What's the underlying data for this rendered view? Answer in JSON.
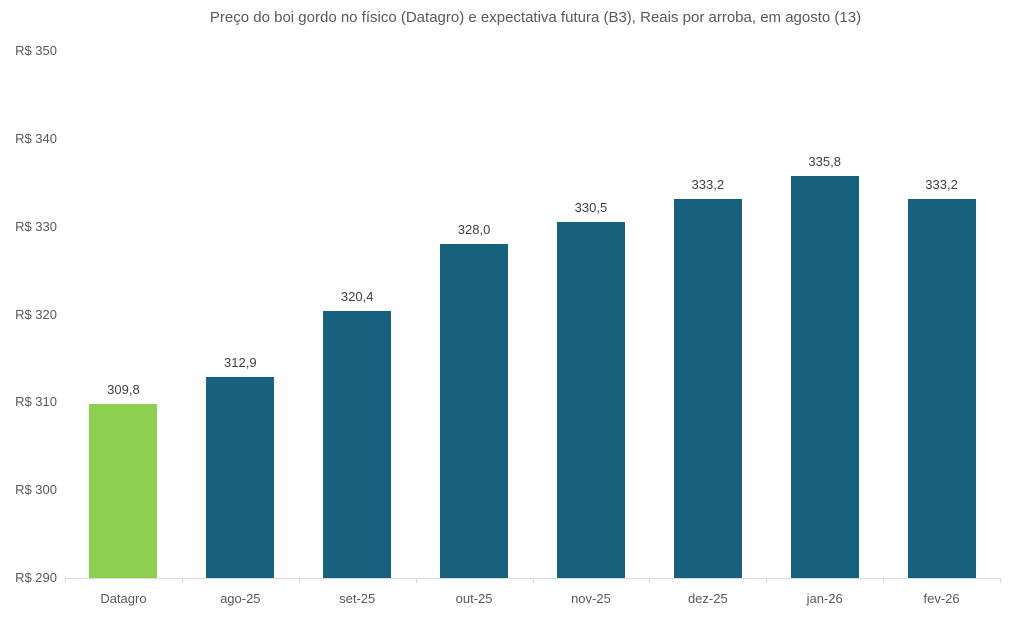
{
  "chart_data": {
    "type": "bar",
    "title": "Preço do boi gordo no físico (Datagro)  e expectativa futura (B3), Reais por arroba, em agosto (13)",
    "categories": [
      "Datagro",
      "ago-25",
      "set-25",
      "out-25",
      "nov-25",
      "dez-25",
      "jan-26",
      "fev-26"
    ],
    "values": [
      309.8,
      312.9,
      320.4,
      328.0,
      330.5,
      333.2,
      335.8,
      333.2
    ],
    "value_labels": [
      "309,8",
      "312,9",
      "320,4",
      "328,0",
      "330,5",
      "333,2",
      "335,8",
      "333,2"
    ],
    "bar_colors": [
      "#8DD04F",
      "#17617F",
      "#17617F",
      "#17617F",
      "#17617F",
      "#17617F",
      "#17617F",
      "#17617F"
    ],
    "xlabel": "",
    "ylabel": "",
    "ylim": [
      290,
      350
    ],
    "yticks": [
      {
        "label": "R$ 350",
        "value": 350
      },
      {
        "label": "R$ 340",
        "value": 340
      },
      {
        "label": "R$ 330",
        "value": 330
      },
      {
        "label": "R$ 320",
        "value": 320
      },
      {
        "label": "R$ 310",
        "value": 310
      },
      {
        "label": "R$ 300",
        "value": 300
      },
      {
        "label": "R$ 290",
        "value": 290
      }
    ],
    "grid": false,
    "legend": "none",
    "colors": {
      "highlight_green": "#8DD04F",
      "series_teal": "#17617F",
      "axis_line": "#D9D9D9",
      "axis_text": "#595959",
      "value_text": "#404040",
      "title_text": "#595959",
      "background": "#FFFFFF"
    }
  }
}
